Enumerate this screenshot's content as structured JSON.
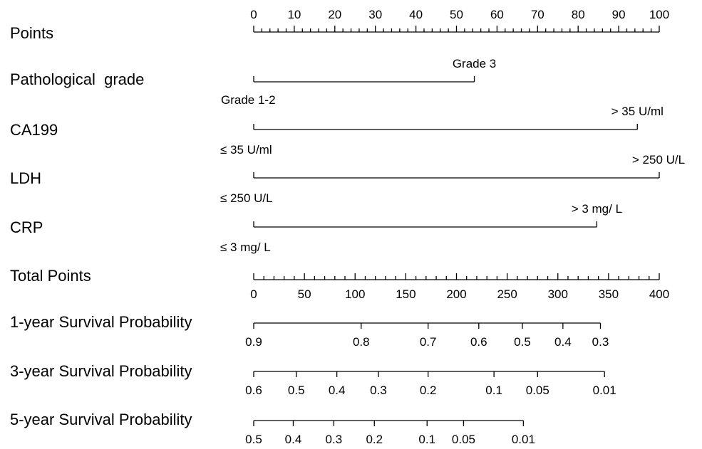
{
  "chart_data": {
    "type": "nomogram",
    "points_axis": {
      "label": "Points",
      "range": [
        0,
        100
      ],
      "major_ticks": [
        0,
        10,
        20,
        30,
        40,
        50,
        60,
        70,
        80,
        90,
        100
      ],
      "minor_step": 2
    },
    "predictors": [
      {
        "label": "Pathological  grade",
        "levels": [
          {
            "label": "Grade 1-2",
            "points": 0
          },
          {
            "label": "Grade 3",
            "points": 54.4
          }
        ]
      },
      {
        "label": "CA199",
        "levels": [
          {
            "label": "≤ 35 U/ml",
            "points": 0
          },
          {
            "label": "> 35 U/ml",
            "points": 94.6
          }
        ]
      },
      {
        "label": "LDH",
        "levels": [
          {
            "label": "≤ 250 U/L",
            "points": 0
          },
          {
            "label": "> 250 U/L",
            "points": 100
          }
        ]
      },
      {
        "label": "CRP",
        "levels": [
          {
            "label": "≤ 3 mg/ L",
            "points": 0
          },
          {
            "label": "> 3 mg/ L",
            "points": 84.6
          }
        ]
      }
    ],
    "total_points_axis": {
      "label": "Total Points",
      "range": [
        0,
        400
      ],
      "major_ticks": [
        0,
        50,
        100,
        150,
        200,
        250,
        300,
        350,
        400
      ],
      "minor_step": 10
    },
    "survival_axes": [
      {
        "label": "1-year Survival Probability",
        "ticks": [
          {
            "label": "0.9",
            "total_points": 0
          },
          {
            "label": "0.8",
            "total_points": 106
          },
          {
            "label": "0.7",
            "total_points": 172
          },
          {
            "label": "0.6",
            "total_points": 222
          },
          {
            "label": "0.5",
            "total_points": 265
          },
          {
            "label": "0.4",
            "total_points": 305
          },
          {
            "label": "0.3",
            "total_points": 342
          }
        ]
      },
      {
        "label": "3-year Survival Probability",
        "ticks": [
          {
            "label": "0.6",
            "total_points": 0
          },
          {
            "label": "0.5",
            "total_points": 42
          },
          {
            "label": "0.4",
            "total_points": 82
          },
          {
            "label": "0.3",
            "total_points": 123
          },
          {
            "label": "0.2",
            "total_points": 172
          },
          {
            "label": "0.1",
            "total_points": 237
          },
          {
            "label": "0.05",
            "total_points": 280
          },
          {
            "label": "0.01",
            "total_points": 346
          }
        ]
      },
      {
        "label": "5-year Survival Probability",
        "ticks": [
          {
            "label": "0.5",
            "total_points": 0
          },
          {
            "label": "0.4",
            "total_points": 39
          },
          {
            "label": "0.3",
            "total_points": 79
          },
          {
            "label": "0.2",
            "total_points": 119
          },
          {
            "label": "0.1",
            "total_points": 171
          },
          {
            "label": "0.05",
            "total_points": 207
          },
          {
            "label": "0.01",
            "total_points": 266
          }
        ]
      }
    ]
  }
}
